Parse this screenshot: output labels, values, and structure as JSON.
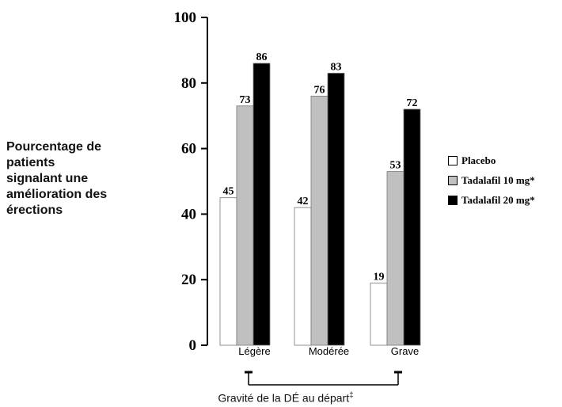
{
  "chart_data": {
    "type": "bar",
    "title": "",
    "ylabel": "Pourcentage de patients signalant une amélioration des érections",
    "ylabel_lines": [
      "Pourcentage de",
      "patients",
      "signalant une",
      "amélioration des",
      "érections"
    ],
    "xlabel": "Gravité de la DÉ au départ",
    "xlabel_mark": "‡",
    "ylim": [
      0,
      100
    ],
    "yticks": [
      "0",
      "20",
      "40",
      "60",
      "80",
      "100"
    ],
    "categories": [
      "Légère",
      "Modérée",
      "Grave"
    ],
    "series": [
      {
        "name": "Placebo",
        "values": [
          45,
          42,
          19
        ],
        "color": "#ffffff"
      },
      {
        "name": "Tadalafil 10 mg*",
        "values": [
          73,
          76,
          53
        ],
        "color": "#c0c0c0"
      },
      {
        "name": "Tadalafil 20 mg*",
        "values": [
          86,
          83,
          72
        ],
        "color": "#000000"
      }
    ],
    "legend_position": "right",
    "grid": false
  }
}
